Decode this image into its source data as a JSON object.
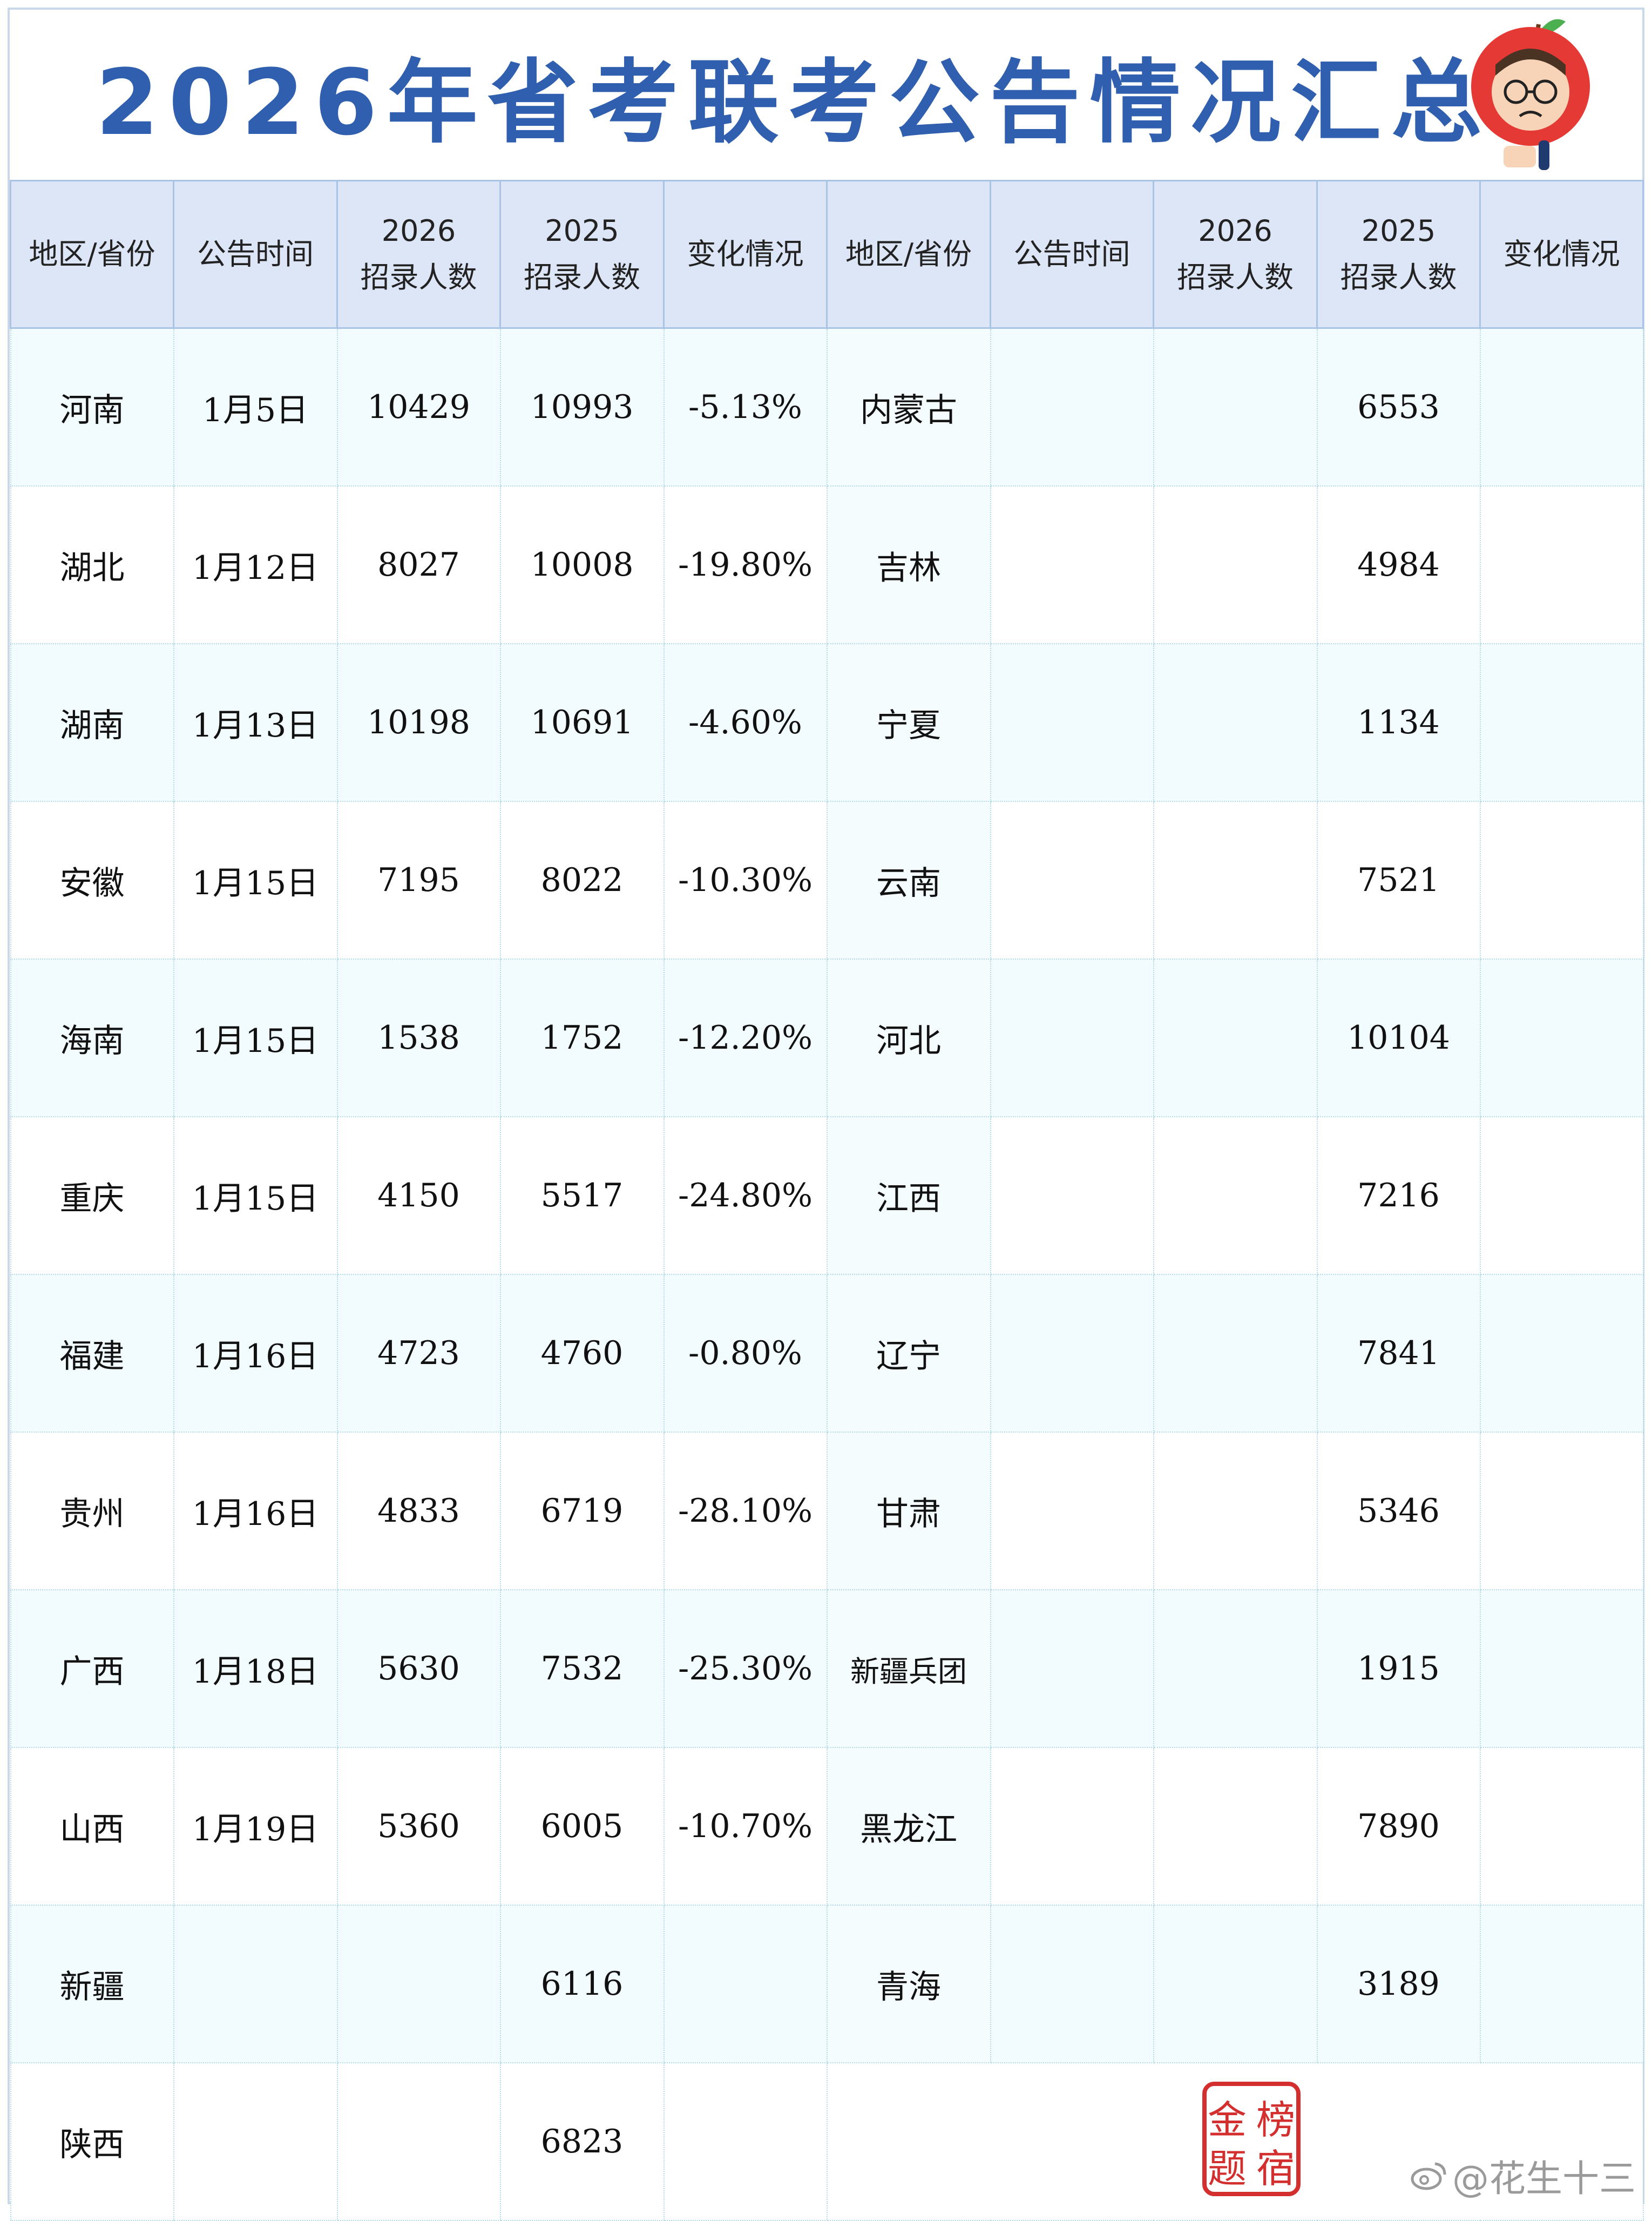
{
  "title": "2026年省考联考公告情况汇总",
  "headers": [
    {
      "line1": "地区/省份",
      "line2": ""
    },
    {
      "line1": "公告时间",
      "line2": ""
    },
    {
      "line1": "2026",
      "line2": "招录人数"
    },
    {
      "line1": "2025",
      "line2": "招录人数"
    },
    {
      "line1": "变化情况",
      "line2": ""
    },
    {
      "line1": "地区/省份",
      "line2": ""
    },
    {
      "line1": "公告时间",
      "line2": ""
    },
    {
      "line1": "2026",
      "line2": "招录人数"
    },
    {
      "line1": "2025",
      "line2": "招录人数"
    },
    {
      "line1": "变化情况",
      "line2": ""
    }
  ],
  "rows": [
    {
      "l_region": "河南",
      "l_date": "1月5日",
      "l_2026": "10429",
      "l_2025": "10993",
      "l_change": "-5.13%",
      "r_region": "内蒙古",
      "r_date": "",
      "r_2026": "",
      "r_2025": "6553",
      "r_change": ""
    },
    {
      "l_region": "湖北",
      "l_date": "1月12日",
      "l_2026": "8027",
      "l_2025": "10008",
      "l_change": "-19.80%",
      "r_region": "吉林",
      "r_date": "",
      "r_2026": "",
      "r_2025": "4984",
      "r_change": ""
    },
    {
      "l_region": "湖南",
      "l_date": "1月13日",
      "l_2026": "10198",
      "l_2025": "10691",
      "l_change": "-4.60%",
      "r_region": "宁夏",
      "r_date": "",
      "r_2026": "",
      "r_2025": "1134",
      "r_change": ""
    },
    {
      "l_region": "安徽",
      "l_date": "1月15日",
      "l_2026": "7195",
      "l_2025": "8022",
      "l_change": "-10.30%",
      "r_region": "云南",
      "r_date": "",
      "r_2026": "",
      "r_2025": "7521",
      "r_change": ""
    },
    {
      "l_region": "海南",
      "l_date": "1月15日",
      "l_2026": "1538",
      "l_2025": "1752",
      "l_change": "-12.20%",
      "r_region": "河北",
      "r_date": "",
      "r_2026": "",
      "r_2025": "10104",
      "r_change": ""
    },
    {
      "l_region": "重庆",
      "l_date": "1月15日",
      "l_2026": "4150",
      "l_2025": "5517",
      "l_change": "-24.80%",
      "r_region": "江西",
      "r_date": "",
      "r_2026": "",
      "r_2025": "7216",
      "r_change": ""
    },
    {
      "l_region": "福建",
      "l_date": "1月16日",
      "l_2026": "4723",
      "l_2025": "4760",
      "l_change": "-0.80%",
      "r_region": "辽宁",
      "r_date": "",
      "r_2026": "",
      "r_2025": "7841",
      "r_change": ""
    },
    {
      "l_region": "贵州",
      "l_date": "1月16日",
      "l_2026": "4833",
      "l_2025": "6719",
      "l_change": "-28.10%",
      "r_region": "甘肃",
      "r_date": "",
      "r_2026": "",
      "r_2025": "5346",
      "r_change": ""
    },
    {
      "l_region": "广西",
      "l_date": "1月18日",
      "l_2026": "5630",
      "l_2025": "7532",
      "l_change": "-25.30%",
      "r_region": "新疆兵团",
      "r_date": "",
      "r_2026": "",
      "r_2025": "1915",
      "r_change": ""
    },
    {
      "l_region": "山西",
      "l_date": "1月19日",
      "l_2026": "5360",
      "l_2025": "6005",
      "l_change": "-10.70%",
      "r_region": "黑龙江",
      "r_date": "",
      "r_2026": "",
      "r_2025": "7890",
      "r_change": ""
    },
    {
      "l_region": "新疆",
      "l_date": "",
      "l_2026": "",
      "l_2025": "6116",
      "l_change": "",
      "r_region": "青海",
      "r_date": "",
      "r_2026": "",
      "r_2025": "3189",
      "r_change": ""
    },
    {
      "l_region": "陕西",
      "l_date": "",
      "l_2026": "",
      "l_2025": "6823",
      "l_change": ""
    }
  ],
  "seal_text": "榜宿金题",
  "watermark": "@花生十三",
  "colors": {
    "title": "#2f5fae",
    "header_bg": "#dde6f6",
    "row_tint": "#f2fcfe"
  }
}
